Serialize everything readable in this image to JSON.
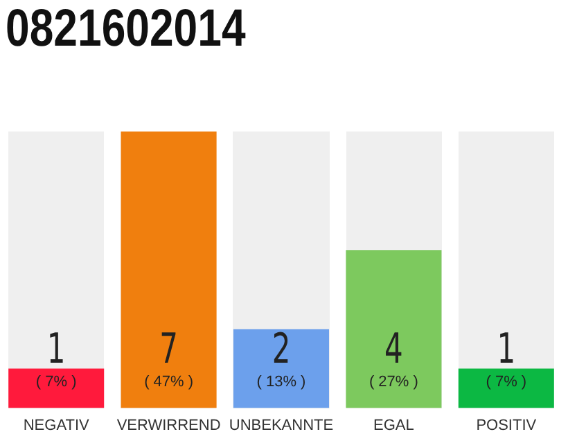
{
  "chart_data": {
    "type": "bar",
    "title": "0821602014",
    "categories": [
      "NEGATIV",
      "VERWIRREND",
      "UNBEKANNTE",
      "EGAL",
      "POSITIV"
    ],
    "values": [
      1,
      7,
      2,
      4,
      1
    ],
    "colors": [
      "#ff1a3c",
      "#f07f0e",
      "#6ca0ec",
      "#7dc95e",
      "#0cb843"
    ],
    "ylim": [
      0,
      7
    ],
    "tick_labels": "x",
    "grid": false,
    "legend": false,
    "data_labels": true,
    "annotations": [
      "( 7% )",
      "( 47% )",
      "( 13% )",
      "( 27% )",
      "( 7% )"
    ]
  }
}
